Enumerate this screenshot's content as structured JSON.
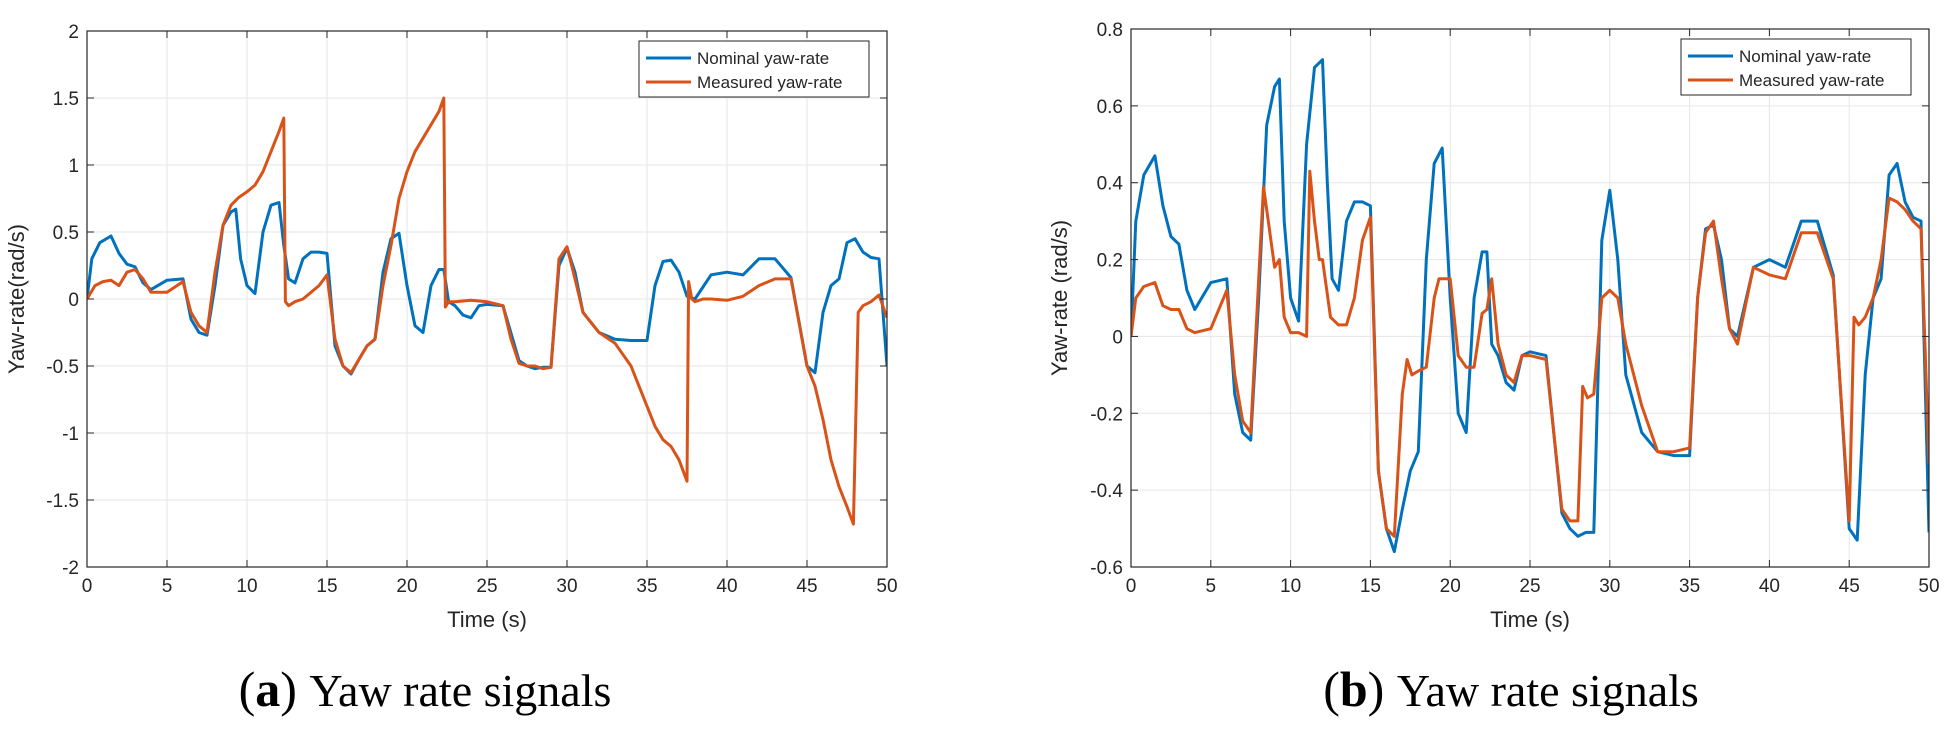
{
  "colors": {
    "nominal": "#0072BD",
    "measured": "#D95319",
    "grid": "#e6e6e6",
    "axis": "#262626"
  },
  "chart_data": [
    {
      "type": "line",
      "caption": {
        "letter": "a",
        "text": "Yaw rate signals"
      },
      "xlabel": "Time (s)",
      "ylabel": "Yaw-rate(rad/s)",
      "xlim": [
        0,
        50
      ],
      "ylim": [
        -2,
        2
      ],
      "x_ticks": [
        0,
        5,
        10,
        15,
        20,
        25,
        30,
        35,
        40,
        45,
        50
      ],
      "x_tick_labels": [
        "0",
        "5",
        "10",
        "15",
        "20",
        "25",
        "30",
        "35",
        "40",
        "45",
        "50"
      ],
      "y_ticks": [
        -2,
        -1.5,
        -1,
        -0.5,
        0,
        0.5,
        1,
        1.5,
        2
      ],
      "y_tick_labels": [
        "-2",
        "-1.5",
        "-1",
        "-0.5",
        "0",
        "0.5",
        "1",
        "1.5",
        "2"
      ],
      "grid": true,
      "legend_position": "top-right",
      "series": [
        {
          "name": "Nominal yaw-rate",
          "color_key": "nominal",
          "x": [
            0,
            0.3,
            0.8,
            1.5,
            2.0,
            2.5,
            3.0,
            3.5,
            4.0,
            5.0,
            6.0,
            6.5,
            7.0,
            7.5,
            8.0,
            8.5,
            9.0,
            9.3,
            9.6,
            10.0,
            10.5,
            11.0,
            11.5,
            12.0,
            12.3,
            12.6,
            13.0,
            13.5,
            14.0,
            14.5,
            15.0,
            15.5,
            16.0,
            16.5,
            17.0,
            17.5,
            18.0,
            18.5,
            19.0,
            19.5,
            20.0,
            20.5,
            21.0,
            21.5,
            22.0,
            22.3,
            22.6,
            23.0,
            23.5,
            24.0,
            24.5,
            25.0,
            26.0,
            27.0,
            27.5,
            28.0,
            28.5,
            29.0,
            29.5,
            30.0,
            30.5,
            31.0,
            32.0,
            33.0,
            34.0,
            35.0,
            35.5,
            36.0,
            36.5,
            37.0,
            37.5,
            38.0,
            39.0,
            40.0,
            41.0,
            42.0,
            43.0,
            44.0,
            45.0,
            45.5,
            46.0,
            46.5,
            47.0,
            47.5,
            48.0,
            48.5,
            49.0,
            49.5,
            50.0
          ],
          "values": [
            0,
            0.3,
            0.42,
            0.47,
            0.34,
            0.26,
            0.24,
            0.12,
            0.07,
            0.14,
            0.15,
            -0.15,
            -0.25,
            -0.27,
            0.1,
            0.55,
            0.65,
            0.67,
            0.3,
            0.1,
            0.04,
            0.5,
            0.7,
            0.72,
            0.4,
            0.15,
            0.12,
            0.3,
            0.35,
            0.35,
            0.34,
            -0.35,
            -0.5,
            -0.56,
            -0.45,
            -0.35,
            -0.3,
            0.2,
            0.45,
            0.49,
            0.1,
            -0.2,
            -0.25,
            0.1,
            0.22,
            0.22,
            -0.02,
            -0.05,
            -0.12,
            -0.14,
            -0.05,
            -0.04,
            -0.05,
            -0.46,
            -0.5,
            -0.52,
            -0.51,
            -0.51,
            0.25,
            0.38,
            0.2,
            -0.1,
            -0.25,
            -0.3,
            -0.31,
            -0.31,
            0.1,
            0.28,
            0.29,
            0.2,
            0.02,
            0.0,
            0.18,
            0.2,
            0.18,
            0.3,
            0.3,
            0.16,
            -0.5,
            -0.55,
            -0.1,
            0.1,
            0.15,
            0.42,
            0.45,
            0.35,
            0.31,
            0.3,
            -0.5
          ]
        },
        {
          "name": "Measured yaw-rate",
          "color_key": "measured",
          "x": [
            0,
            0.5,
            1.0,
            1.5,
            2.0,
            2.5,
            3.0,
            3.5,
            4.0,
            5.0,
            6.0,
            6.5,
            7.0,
            7.5,
            8.0,
            8.5,
            9.0,
            9.5,
            10.0,
            10.5,
            11.0,
            11.5,
            12.0,
            12.3,
            12.4,
            12.6,
            13.0,
            13.5,
            14.0,
            14.5,
            15.0,
            15.5,
            16.0,
            16.5,
            17.0,
            17.5,
            18.0,
            18.5,
            19.0,
            19.5,
            20.0,
            20.5,
            21.0,
            21.5,
            22.0,
            22.3,
            22.4,
            22.6,
            23.0,
            24.0,
            25.0,
            26.0,
            26.5,
            27.0,
            27.5,
            28.0,
            28.5,
            29.0,
            29.5,
            30.0,
            30.5,
            31.0,
            32.0,
            33.0,
            34.0,
            35.0,
            35.5,
            36.0,
            36.5,
            37.0,
            37.5,
            37.6,
            37.8,
            38.0,
            38.5,
            39.0,
            40.0,
            41.0,
            42.0,
            43.0,
            44.0,
            45.0,
            45.5,
            46.0,
            46.5,
            47.0,
            47.5,
            47.9,
            48.2,
            48.5,
            49.0,
            49.5,
            50.0
          ],
          "values": [
            0,
            0.1,
            0.13,
            0.14,
            0.1,
            0.2,
            0.22,
            0.15,
            0.05,
            0.05,
            0.13,
            -0.1,
            -0.2,
            -0.25,
            0.2,
            0.55,
            0.7,
            0.76,
            0.8,
            0.85,
            0.95,
            1.1,
            1.25,
            1.35,
            -0.02,
            -0.05,
            -0.02,
            0.0,
            0.05,
            0.1,
            0.18,
            -0.3,
            -0.5,
            -0.55,
            -0.45,
            -0.35,
            -0.3,
            0.1,
            0.4,
            0.75,
            0.95,
            1.1,
            1.2,
            1.3,
            1.4,
            1.5,
            -0.06,
            -0.02,
            -0.02,
            -0.01,
            -0.02,
            -0.05,
            -0.3,
            -0.48,
            -0.5,
            -0.5,
            -0.52,
            -0.51,
            0.3,
            0.39,
            0.15,
            -0.1,
            -0.25,
            -0.33,
            -0.5,
            -0.8,
            -0.95,
            -1.05,
            -1.1,
            -1.2,
            -1.36,
            0.13,
            0.0,
            -0.02,
            0.0,
            0.0,
            -0.01,
            0.02,
            0.1,
            0.15,
            0.15,
            -0.5,
            -0.65,
            -0.9,
            -1.2,
            -1.4,
            -1.55,
            -1.68,
            -0.1,
            -0.05,
            -0.02,
            0.03,
            -0.14
          ]
        }
      ]
    },
    {
      "type": "line",
      "caption": {
        "letter": "b",
        "text": "Yaw rate signals"
      },
      "xlabel": "Time (s)",
      "ylabel": "Yaw-rate (rad/s)",
      "xlim": [
        0,
        50
      ],
      "ylim": [
        -0.6,
        0.8
      ],
      "x_ticks": [
        0,
        5,
        10,
        15,
        20,
        25,
        30,
        35,
        40,
        45,
        50
      ],
      "x_tick_labels": [
        "0",
        "5",
        "10",
        "15",
        "20",
        "25",
        "30",
        "35",
        "40",
        "45",
        "50"
      ],
      "y_ticks": [
        -0.6,
        -0.4,
        -0.2,
        0,
        0.2,
        0.4,
        0.6,
        0.8
      ],
      "y_tick_labels": [
        "-0.6",
        "-0.4",
        "-0.2",
        "0",
        "0.2",
        "0.4",
        "0.6",
        "0.8"
      ],
      "grid": true,
      "legend_position": "top-right",
      "series": [
        {
          "name": "Nominal yaw-rate",
          "color_key": "nominal",
          "x": [
            0,
            0.3,
            0.8,
            1.5,
            2.0,
            2.5,
            3.0,
            3.5,
            4.0,
            5.0,
            6.0,
            6.5,
            7.0,
            7.5,
            8.0,
            8.5,
            9.0,
            9.3,
            9.6,
            10.0,
            10.5,
            11.0,
            11.5,
            12.0,
            12.3,
            12.6,
            13.0,
            13.5,
            14.0,
            14.5,
            15.0,
            15.5,
            16.0,
            16.5,
            17.0,
            17.5,
            18.0,
            18.5,
            19.0,
            19.5,
            20.0,
            20.5,
            21.0,
            21.5,
            22.0,
            22.3,
            22.6,
            23.0,
            23.5,
            24.0,
            24.5,
            25.0,
            26.0,
            27.0,
            27.5,
            28.0,
            28.5,
            29.0,
            29.5,
            30.0,
            30.5,
            31.0,
            32.0,
            33.0,
            34.0,
            35.0,
            35.5,
            36.0,
            36.5,
            37.0,
            37.5,
            38.0,
            39.0,
            40.0,
            41.0,
            42.0,
            43.0,
            44.0,
            45.0,
            45.5,
            46.0,
            46.5,
            47.0,
            47.5,
            48.0,
            48.5,
            49.0,
            49.5,
            50.0
          ],
          "values": [
            0,
            0.3,
            0.42,
            0.47,
            0.34,
            0.26,
            0.24,
            0.12,
            0.07,
            0.14,
            0.15,
            -0.15,
            -0.25,
            -0.27,
            0.1,
            0.55,
            0.65,
            0.67,
            0.3,
            0.1,
            0.04,
            0.5,
            0.7,
            0.72,
            0.4,
            0.15,
            0.12,
            0.3,
            0.35,
            0.35,
            0.34,
            -0.35,
            -0.5,
            -0.56,
            -0.45,
            -0.35,
            -0.3,
            0.2,
            0.45,
            0.49,
            0.1,
            -0.2,
            -0.25,
            0.1,
            0.22,
            0.22,
            -0.02,
            -0.05,
            -0.12,
            -0.14,
            -0.05,
            -0.04,
            -0.05,
            -0.46,
            -0.5,
            -0.52,
            -0.51,
            -0.51,
            0.25,
            0.38,
            0.2,
            -0.1,
            -0.25,
            -0.3,
            -0.31,
            -0.31,
            0.1,
            0.28,
            0.29,
            0.2,
            0.02,
            0.0,
            0.18,
            0.2,
            0.18,
            0.3,
            0.3,
            0.16,
            -0.5,
            -0.53,
            -0.1,
            0.1,
            0.15,
            0.42,
            0.45,
            0.35,
            0.31,
            0.3,
            -0.51
          ]
        },
        {
          "name": "Measured yaw-rate",
          "color_key": "measured",
          "x": [
            0,
            0.3,
            0.8,
            1.5,
            2.0,
            2.5,
            3.0,
            3.5,
            4.0,
            5.0,
            6.0,
            6.5,
            7.0,
            7.5,
            8.0,
            8.3,
            8.6,
            9.0,
            9.3,
            9.6,
            10.0,
            10.5,
            11.0,
            11.2,
            11.5,
            11.8,
            12.0,
            12.5,
            13.0,
            13.5,
            14.0,
            14.5,
            15.0,
            15.5,
            16.0,
            16.5,
            17.0,
            17.3,
            17.6,
            18.0,
            18.5,
            19.0,
            19.3,
            19.6,
            20.0,
            20.5,
            21.0,
            21.5,
            22.0,
            22.3,
            22.6,
            23.0,
            23.5,
            24.0,
            24.5,
            25.0,
            26.0,
            27.0,
            27.5,
            28.0,
            28.3,
            28.6,
            29.0,
            29.5,
            30.0,
            30.5,
            31.0,
            32.0,
            33.0,
            34.0,
            35.0,
            35.5,
            36.0,
            36.5,
            37.0,
            37.5,
            38.0,
            39.0,
            40.0,
            41.0,
            42.0,
            43.0,
            44.0,
            45.0,
            45.3,
            45.6,
            46.0,
            46.5,
            47.0,
            47.5,
            48.0,
            48.5,
            49.0,
            49.5,
            50.0
          ],
          "values": [
            0,
            0.1,
            0.13,
            0.14,
            0.08,
            0.07,
            0.07,
            0.02,
            0.01,
            0.02,
            0.12,
            -0.1,
            -0.22,
            -0.25,
            0.15,
            0.39,
            0.3,
            0.18,
            0.2,
            0.05,
            0.01,
            0.01,
            0.0,
            0.43,
            0.3,
            0.2,
            0.2,
            0.05,
            0.03,
            0.03,
            0.1,
            0.25,
            0.31,
            -0.35,
            -0.5,
            -0.52,
            -0.15,
            -0.06,
            -0.1,
            -0.09,
            -0.08,
            0.1,
            0.15,
            0.15,
            0.15,
            -0.05,
            -0.08,
            -0.08,
            0.06,
            0.07,
            0.15,
            -0.02,
            -0.1,
            -0.12,
            -0.05,
            -0.05,
            -0.06,
            -0.45,
            -0.48,
            -0.48,
            -0.13,
            -0.16,
            -0.15,
            0.1,
            0.12,
            0.1,
            -0.02,
            -0.18,
            -0.3,
            -0.3,
            -0.29,
            0.1,
            0.27,
            0.3,
            0.15,
            0.02,
            -0.02,
            0.18,
            0.16,
            0.15,
            0.27,
            0.27,
            0.15,
            -0.48,
            0.05,
            0.03,
            0.05,
            0.1,
            0.2,
            0.36,
            0.35,
            0.33,
            0.3,
            0.28,
            -0.33
          ]
        }
      ]
    }
  ]
}
